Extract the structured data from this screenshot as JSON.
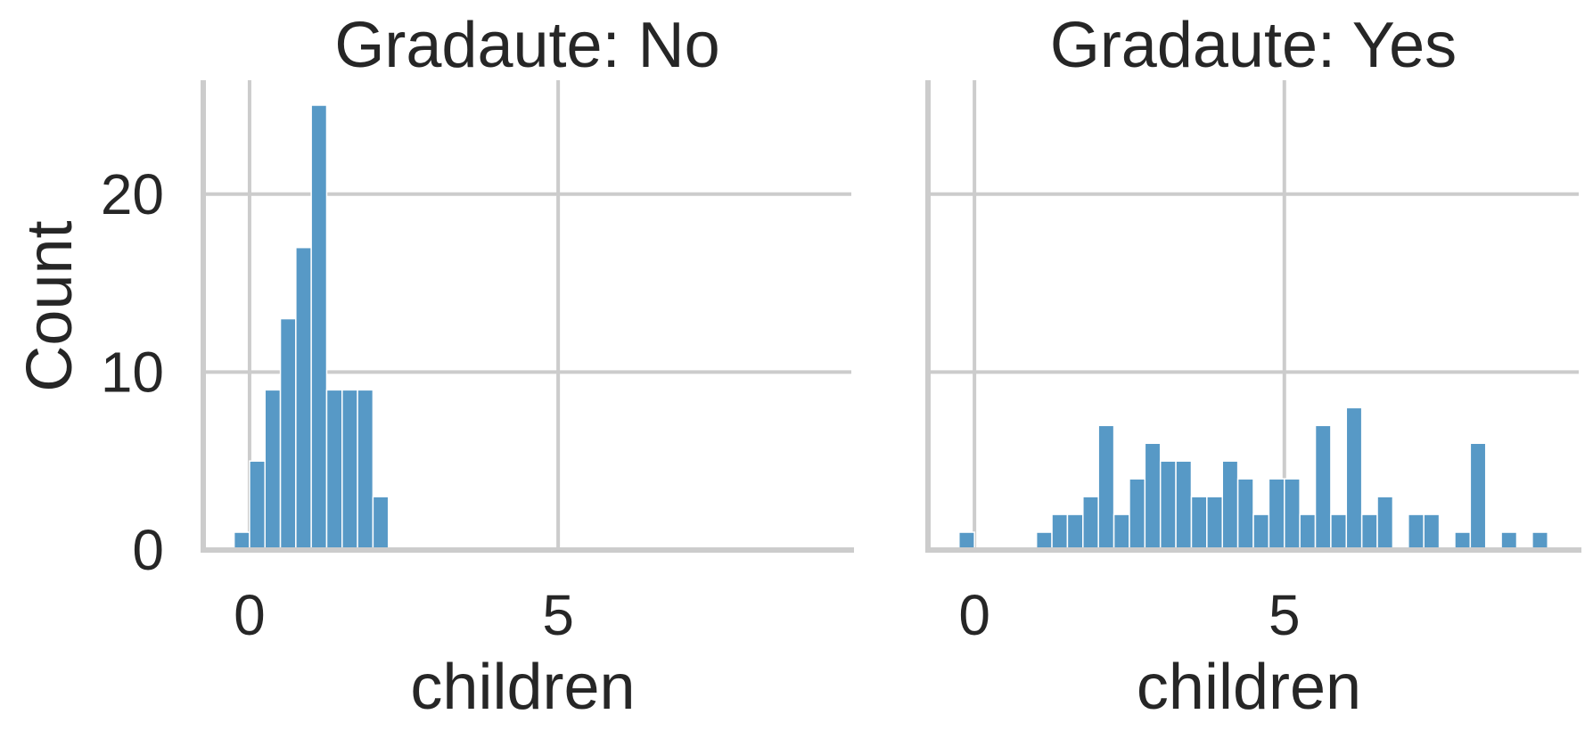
{
  "chart_data": [
    {
      "type": "bar",
      "title": "Gradaute: No",
      "xlabel": "children",
      "ylabel": "Count",
      "xticks": [
        0,
        5
      ],
      "yticks": [
        0,
        10,
        20
      ],
      "ylim": [
        0,
        25
      ],
      "grid": true,
      "bin_width": 0.25,
      "bins": [
        {
          "x": -0.25,
          "count": 1
        },
        {
          "x": 0.0,
          "count": 5
        },
        {
          "x": 0.25,
          "count": 9
        },
        {
          "x": 0.5,
          "count": 13
        },
        {
          "x": 0.75,
          "count": 17
        },
        {
          "x": 1.0,
          "count": 25
        },
        {
          "x": 1.25,
          "count": 9
        },
        {
          "x": 1.5,
          "count": 9
        },
        {
          "x": 1.75,
          "count": 9
        },
        {
          "x": 2.0,
          "count": 3
        }
      ]
    },
    {
      "type": "bar",
      "title": "Gradaute: Yes",
      "xlabel": "children",
      "ylabel": "",
      "xticks": [
        0,
        5
      ],
      "yticks": [
        0,
        10,
        20
      ],
      "ylim": [
        0,
        25
      ],
      "grid": true,
      "bin_width": 0.25,
      "bins": [
        {
          "x": -0.25,
          "count": 1
        },
        {
          "x": 1.0,
          "count": 1
        },
        {
          "x": 1.25,
          "count": 2
        },
        {
          "x": 1.5,
          "count": 2
        },
        {
          "x": 1.75,
          "count": 3
        },
        {
          "x": 2.0,
          "count": 7
        },
        {
          "x": 2.25,
          "count": 2
        },
        {
          "x": 2.5,
          "count": 4
        },
        {
          "x": 2.75,
          "count": 6
        },
        {
          "x": 3.0,
          "count": 5
        },
        {
          "x": 3.25,
          "count": 5
        },
        {
          "x": 3.5,
          "count": 3
        },
        {
          "x": 3.75,
          "count": 3
        },
        {
          "x": 4.0,
          "count": 5
        },
        {
          "x": 4.25,
          "count": 4
        },
        {
          "x": 4.5,
          "count": 2
        },
        {
          "x": 4.75,
          "count": 4
        },
        {
          "x": 5.0,
          "count": 4
        },
        {
          "x": 5.25,
          "count": 2
        },
        {
          "x": 5.5,
          "count": 7
        },
        {
          "x": 5.75,
          "count": 2
        },
        {
          "x": 6.0,
          "count": 8
        },
        {
          "x": 6.25,
          "count": 2
        },
        {
          "x": 6.5,
          "count": 3
        },
        {
          "x": 7.0,
          "count": 2
        },
        {
          "x": 7.25,
          "count": 2
        },
        {
          "x": 7.75,
          "count": 1
        },
        {
          "x": 8.0,
          "count": 6
        },
        {
          "x": 8.5,
          "count": 1
        },
        {
          "x": 9.0,
          "count": 1
        }
      ]
    }
  ]
}
